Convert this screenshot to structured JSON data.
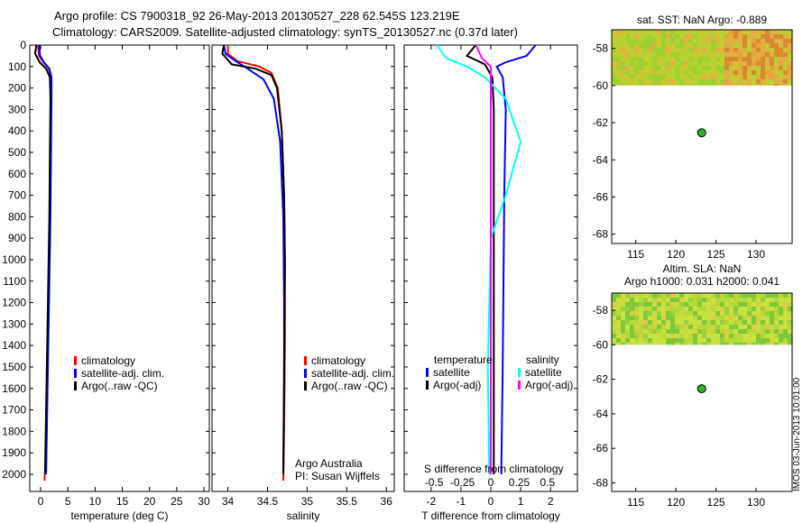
{
  "header": {
    "line1": "Argo profile: CS 7900318_92 26-May-2013 20130527_228 62.545S 123.219E",
    "line2": "Climatology: CARS2009. Satellite-adjusted climatology: synTS_20130527.nc (0.37d later)"
  },
  "colors": {
    "climatology": "#ff0000",
    "satellite": "#0000ff",
    "argo": "#000000",
    "sat_salinity": "#00ffff",
    "argo_salinity": "#ff00ff",
    "float_marker": "#22bb22"
  },
  "footer": {
    "imos": "IMOS 03-Jun-2013 10:01:00"
  },
  "chart_data": [
    {
      "id": "temperature",
      "type": "line",
      "xlabel": "temperature (deg C)",
      "xlim": [
        -2,
        31
      ],
      "ylim": [
        0,
        2080
      ],
      "xticks": [
        0,
        5,
        10,
        15,
        20,
        25,
        30
      ],
      "yticks": [
        0,
        100,
        200,
        300,
        400,
        500,
        600,
        700,
        800,
        900,
        1000,
        1100,
        1200,
        1300,
        1400,
        1500,
        1600,
        1700,
        1800,
        1900,
        2000
      ],
      "legend": [
        "climatology",
        "satellite-adj. clim.",
        "Argo(..raw -QC)"
      ],
      "series": [
        {
          "name": "climatology",
          "color": "#ff0000",
          "x": [
            -0.5,
            -0.3,
            0.5,
            1.5,
            1.9,
            1.9,
            1.8,
            1.7,
            1.5,
            1.3,
            1.1,
            0.9,
            0.7
          ],
          "y": [
            0,
            50,
            80,
            110,
            150,
            250,
            500,
            800,
            1100,
            1400,
            1700,
            1950,
            2030
          ]
        },
        {
          "name": "satellite-adj. clim.",
          "color": "#0000ff",
          "x": [
            -0.3,
            -0.1,
            0.6,
            1.6,
            2.0,
            2.0,
            1.9,
            1.8,
            1.6,
            1.4,
            1.2,
            1.0
          ],
          "y": [
            0,
            50,
            80,
            110,
            150,
            250,
            500,
            800,
            1100,
            1400,
            1700,
            2000
          ]
        },
        {
          "name": "Argo(..raw -QC)",
          "color": "#000000",
          "x": [
            -0.8,
            -1.0,
            -0.2,
            1.0,
            1.7,
            1.8,
            1.7,
            1.6,
            1.4,
            1.2,
            1.0,
            0.8
          ],
          "y": [
            0,
            40,
            80,
            110,
            150,
            250,
            500,
            800,
            1100,
            1400,
            1700,
            2000
          ]
        }
      ]
    },
    {
      "id": "salinity",
      "type": "line",
      "xlabel": "salinity",
      "xlim": [
        33.8,
        36.1
      ],
      "ylim": [
        0,
        2080
      ],
      "xticks": [
        34,
        34.5,
        35,
        35.5,
        36
      ],
      "xticklabels": [
        "34",
        "34.5",
        "35",
        "35.5",
        "36"
      ],
      "legend": [
        "climatology",
        "satellite-adj. clim.",
        "Argo(..raw -QC)"
      ],
      "annotation": [
        "Argo Australia",
        "PI: Susan Wijffels"
      ],
      "series": [
        {
          "name": "climatology",
          "color": "#ff0000",
          "x": [
            34.0,
            34.0,
            34.12,
            34.4,
            34.55,
            34.63,
            34.68,
            34.71,
            34.72,
            34.72,
            34.71,
            34.7
          ],
          "y": [
            0,
            40,
            75,
            100,
            130,
            200,
            400,
            700,
            1000,
            1400,
            1800,
            2030
          ]
        },
        {
          "name": "satellite-adj. clim.",
          "color": "#0000ff",
          "x": [
            33.95,
            33.97,
            34.1,
            34.25,
            34.45,
            34.58,
            34.66,
            34.7,
            34.71,
            34.71,
            34.7
          ],
          "y": [
            0,
            40,
            75,
            110,
            160,
            250,
            450,
            800,
            1200,
            1600,
            2000
          ]
        },
        {
          "name": "Argo(..raw -QC)",
          "color": "#000000",
          "x": [
            33.95,
            33.93,
            34.05,
            34.35,
            34.55,
            34.62,
            34.68,
            34.71,
            34.72,
            34.71,
            34.7
          ],
          "y": [
            0,
            40,
            90,
            110,
            140,
            200,
            400,
            700,
            1000,
            1500,
            2000
          ]
        }
      ]
    },
    {
      "id": "difference",
      "type": "line",
      "xlabel": "T difference from climatology",
      "xlabel2": "S difference from climatology",
      "xlim": [
        -2.9,
        2.9
      ],
      "ylim": [
        0,
        2080
      ],
      "xticks": [
        -2,
        -1,
        0,
        1,
        2
      ],
      "s_xticks": [
        "-0.5",
        "-0.25",
        "0",
        "0.25",
        "0.5"
      ],
      "legend_temperature_title": "temperature",
      "legend_salinity_title": "salinity",
      "legend_temperature": [
        "satellite",
        "Argo(-adj)"
      ],
      "legend_salinity": [
        "satellite",
        "Argo(-adj)"
      ],
      "series": [
        {
          "name": "temperature satellite",
          "color": "#0000ff",
          "x": [
            1.5,
            1.2,
            0.5,
            0.2,
            0.4,
            0.5,
            0.45,
            0.4,
            0.35
          ],
          "y": [
            0,
            50,
            80,
            100,
            150,
            300,
            700,
            1500,
            2000
          ]
        },
        {
          "name": "temperature Argo(-adj)",
          "color": "#000000",
          "x": [
            -0.5,
            -0.8,
            -0.2,
            0.05,
            0.1,
            0.1,
            0.1
          ],
          "y": [
            0,
            50,
            90,
            150,
            300,
            1000,
            2000
          ]
        },
        {
          "name": "salinity satellite",
          "color": "#00ffff",
          "x": [
            -1.8,
            -1.5,
            -0.8,
            -0.2,
            0.5,
            1.0,
            0.5,
            0.0,
            -0.1,
            -0.05
          ],
          "y": [
            0,
            60,
            100,
            150,
            250,
            450,
            700,
            900,
            1500,
            2000
          ]
        },
        {
          "name": "salinity Argo(-adj)",
          "color": "#ff00ff",
          "x": [
            -0.5,
            -0.3,
            0.0,
            0.0,
            0.0,
            0.0
          ],
          "y": [
            0,
            60,
            100,
            200,
            1000,
            2000
          ]
        }
      ]
    },
    {
      "id": "sst_map",
      "type": "heatmap",
      "title": "sat. SST: NaN Argo: -0.889",
      "xlim": [
        112,
        134.5
      ],
      "ylim": [
        -68.5,
        -57
      ],
      "xticks": [
        115,
        120,
        125,
        130
      ],
      "yticks": [
        -58,
        -60,
        -62,
        -64,
        -66,
        -68
      ],
      "float_position": {
        "lon": 123.219,
        "lat": -62.545
      }
    },
    {
      "id": "sla_map",
      "type": "heatmap",
      "title": "Altim. SLA: NaN",
      "subtitle": "Argo h1000: 0.031 h2000: 0.041",
      "xlim": [
        112,
        134.5
      ],
      "ylim": [
        -68.5,
        -57
      ],
      "xticks": [
        115,
        120,
        125,
        130
      ],
      "yticks": [
        -58,
        -60,
        -62,
        -64,
        -66,
        -68
      ],
      "float_position": {
        "lon": 123.219,
        "lat": -62.545
      }
    }
  ]
}
